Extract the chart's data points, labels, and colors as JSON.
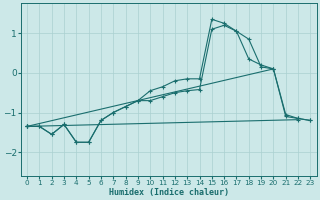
{
  "xlabel": "Humidex (Indice chaleur)",
  "xlim": [
    -0.5,
    23.5
  ],
  "ylim": [
    -2.6,
    1.75
  ],
  "xticks": [
    0,
    1,
    2,
    3,
    4,
    5,
    6,
    7,
    8,
    9,
    10,
    11,
    12,
    13,
    14,
    15,
    16,
    17,
    18,
    19,
    20,
    21,
    22,
    23
  ],
  "yticks": [
    -2,
    -1,
    0,
    1
  ],
  "bg_color": "#cce8e8",
  "line_color": "#1a6e6e",
  "grid_color": "#aad0d0",
  "line1_x": [
    0,
    1,
    2,
    3,
    4,
    5,
    6,
    7,
    8,
    9,
    10,
    11,
    12,
    13,
    14,
    15,
    16,
    17,
    18,
    19,
    20,
    21,
    22,
    23
  ],
  "line1_y": [
    -1.35,
    -1.35,
    -1.55,
    -1.3,
    -1.75,
    -1.75,
    -1.2,
    -1.0,
    -0.85,
    -0.7,
    -0.45,
    -0.35,
    -0.2,
    -0.15,
    -0.15,
    1.35,
    1.25,
    1.05,
    0.35,
    0.2,
    0.1,
    -1.05,
    -1.15,
    -1.2
  ],
  "line2_x": [
    0,
    1,
    2,
    3,
    4,
    5,
    6,
    7,
    8,
    9,
    10,
    11,
    12,
    13,
    14,
    15,
    16,
    17,
    18,
    19,
    20,
    21,
    22,
    23
  ],
  "line2_y": [
    -1.35,
    -1.35,
    -1.55,
    -1.3,
    -1.75,
    -1.75,
    -1.2,
    -1.0,
    -0.85,
    -0.7,
    -0.7,
    -0.6,
    -0.5,
    -0.45,
    -0.42,
    1.1,
    1.2,
    1.05,
    0.85,
    0.15,
    0.1,
    -1.1,
    -1.15,
    -1.2
  ],
  "line3_x": [
    0,
    22
  ],
  "line3_y": [
    -1.35,
    -1.18
  ],
  "line4_x": [
    0,
    20
  ],
  "line4_y": [
    -1.35,
    0.1
  ]
}
